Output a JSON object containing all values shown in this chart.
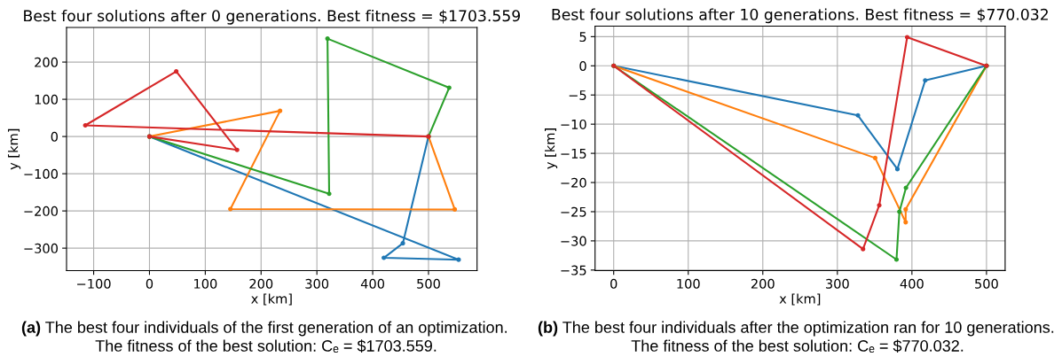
{
  "chart_data": [
    {
      "type": "line",
      "title": "Best four solutions after 0 generations. Best fitness = $1703.559",
      "xlabel": "x [km]",
      "ylabel": "y [km]",
      "series": [
        {
          "color": "#1f77b4",
          "x": [
            0,
            554,
            420,
            454,
            500
          ],
          "values": [
            0,
            -331,
            -326,
            -287,
            0
          ]
        },
        {
          "color": "#ff7f0e",
          "x": [
            0,
            234,
            145,
            547,
            500
          ],
          "values": [
            0,
            69,
            -195,
            -196,
            0
          ]
        },
        {
          "color": "#2ca02c",
          "x": [
            0,
            322,
            319,
            537,
            500
          ],
          "values": [
            0,
            -154,
            263,
            131,
            0
          ]
        },
        {
          "color": "#d62728",
          "x": [
            0,
            157,
            48,
            -115,
            500
          ],
          "values": [
            0,
            -36,
            175,
            30,
            0
          ]
        }
      ],
      "xlim": [
        -148.6,
        587
      ],
      "ylim": [
        -360.4,
        293
      ],
      "xticks": [
        -100,
        0,
        100,
        200,
        300,
        400,
        500
      ],
      "yticks": [
        -300,
        -200,
        -100,
        0,
        100,
        200
      ],
      "grid": true,
      "marker": "circle",
      "line_style": "solid",
      "annotations": [
        "(a)",
        "The best four individuals of the first generation of an optimization.",
        "The fitness of the best solution: Cₑ = $1703.559."
      ]
    },
    {
      "type": "line",
      "title": "Best four solutions after 10 generations. Best fitness = $770.032",
      "xlabel": "x [km]",
      "ylabel": "y [km]",
      "series": [
        {
          "color": "#1f77b4",
          "x": [
            0,
            327.6,
            380.5,
            417.8,
            500
          ],
          "values": [
            0,
            -8.5,
            -17.7,
            -2.5,
            0
          ]
        },
        {
          "color": "#ff7f0e",
          "x": [
            0,
            350.7,
            391.6,
            391.6,
            500
          ],
          "values": [
            0,
            -15.8,
            -26.8,
            -24.6,
            0
          ]
        },
        {
          "color": "#2ca02c",
          "x": [
            0,
            379.3,
            383.2,
            392.0,
            500
          ],
          "values": [
            0,
            -33.2,
            -25.0,
            -20.9,
            0
          ]
        },
        {
          "color": "#d62728",
          "x": [
            0,
            334.4,
            356.2,
            393.6,
            500
          ],
          "values": [
            0,
            -31.4,
            -23.9,
            4.9,
            0
          ]
        }
      ],
      "xlim": [
        -25,
        525
      ],
      "ylim": [
        -35.1,
        6.8
      ],
      "xticks": [
        0,
        100,
        200,
        300,
        400,
        500
      ],
      "yticks": [
        -35,
        -30,
        -25,
        -20,
        -15,
        -10,
        -5,
        0,
        5
      ],
      "grid": true,
      "marker": "circle",
      "line_style": "solid",
      "annotations": [
        "(b)",
        "The best four individuals after the optimization ran for 10 generations.",
        "The fitness of the best solution: Cₑ = $770.032."
      ]
    }
  ]
}
